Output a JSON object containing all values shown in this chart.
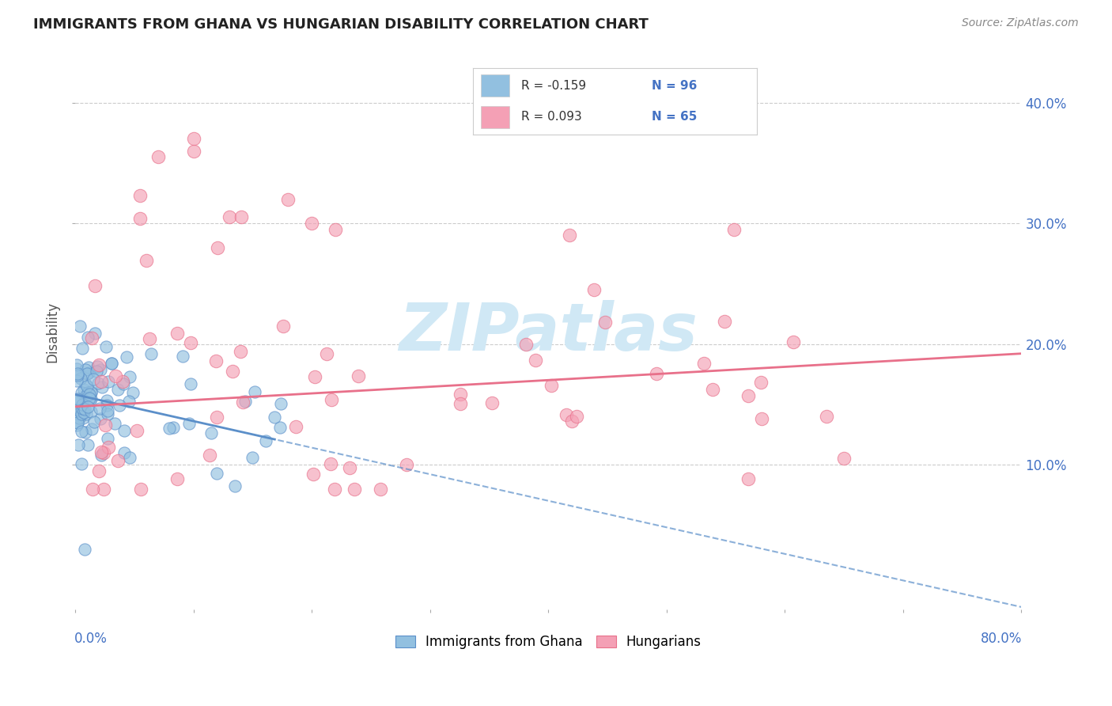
{
  "title": "IMMIGRANTS FROM GHANA VS HUNGARIAN DISABILITY CORRELATION CHART",
  "source": "Source: ZipAtlas.com",
  "ylabel": "Disability",
  "xlim": [
    0.0,
    0.8
  ],
  "ylim": [
    -0.02,
    0.44
  ],
  "yticks": [
    0.1,
    0.2,
    0.3,
    0.4
  ],
  "ytick_labels": [
    "10.0%",
    "20.0%",
    "30.0%",
    "40.0%"
  ],
  "legend_r1": "R = -0.159",
  "legend_n1": "N = 96",
  "legend_r2": "R = 0.093",
  "legend_n2": "N = 65",
  "legend_label1": "Immigrants from Ghana",
  "legend_label2": "Hungarians",
  "color_blue": "#92C0E0",
  "color_pink": "#F4A0B5",
  "color_blue_line": "#5B8FC9",
  "color_pink_line": "#E8708A",
  "text_blue": "#4472C4",
  "watermark_color": "#D0E8F5",
  "ghana_trend_solid_end": 0.17,
  "ghana_trend_intercept": 0.158,
  "ghana_trend_slope": -0.22,
  "hung_trend_intercept": 0.148,
  "hung_trend_slope": 0.055
}
